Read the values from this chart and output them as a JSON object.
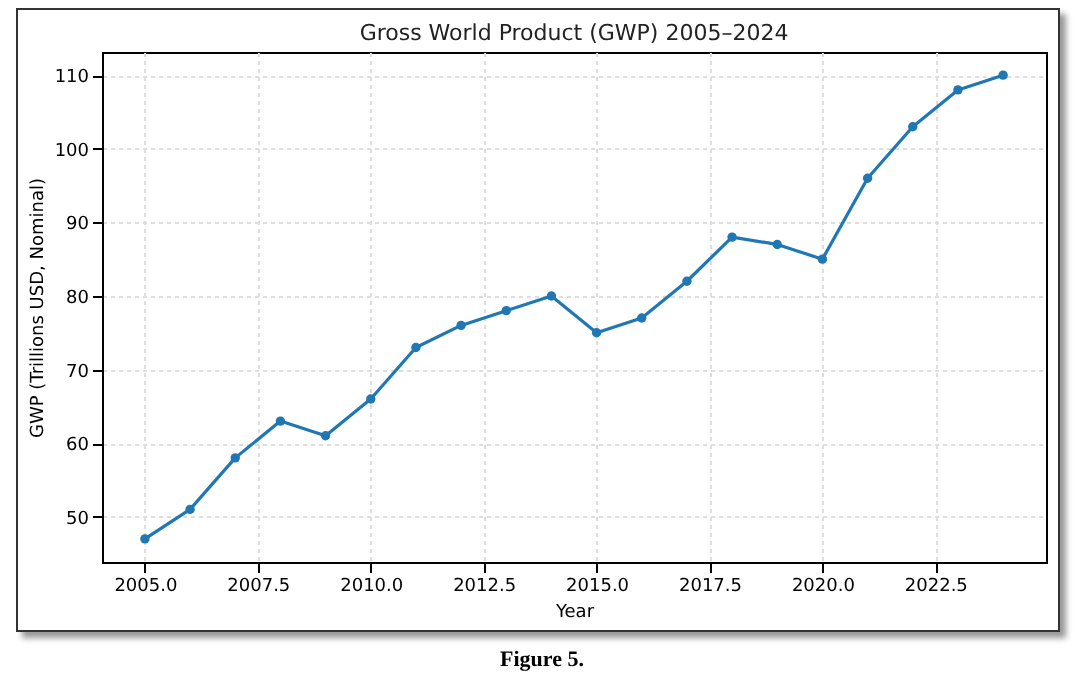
{
  "chart_data": {
    "type": "line",
    "title": "Gross World Product (GWP) 2005–2024",
    "xlabel": "Year",
    "ylabel": "GWP (Trillions USD, Nominal)",
    "x": [
      2005,
      2006,
      2007,
      2008,
      2009,
      2010,
      2011,
      2012,
      2013,
      2014,
      2015,
      2016,
      2017,
      2018,
      2019,
      2020,
      2021,
      2022,
      2023,
      2024
    ],
    "series": [
      {
        "color": "#1f77b4",
        "values": [
          47,
          51,
          58,
          63,
          61,
          66,
          73,
          76,
          78,
          80,
          75,
          77,
          82,
          88,
          87,
          85,
          96,
          103,
          108,
          110
        ]
      }
    ],
    "xlim": [
      2004.05,
      2024.95
    ],
    "xticks": [
      {
        "value": 2005,
        "label": "2005.0"
      },
      2007.5,
      {
        "value": 2010,
        "label": "2010.0"
      },
      2012.5,
      {
        "value": 2015,
        "label": "2015.0"
      },
      2017.5,
      {
        "value": 2020,
        "label": "2020.0"
      },
      2022.5
    ],
    "ylim": [
      43.85,
      113.15
    ],
    "yticks": [
      50,
      60,
      70,
      80,
      90,
      100,
      110
    ],
    "grid": true,
    "marker": "circle",
    "line_style": "solid",
    "annotations": [
      "Figure 5."
    ]
  }
}
